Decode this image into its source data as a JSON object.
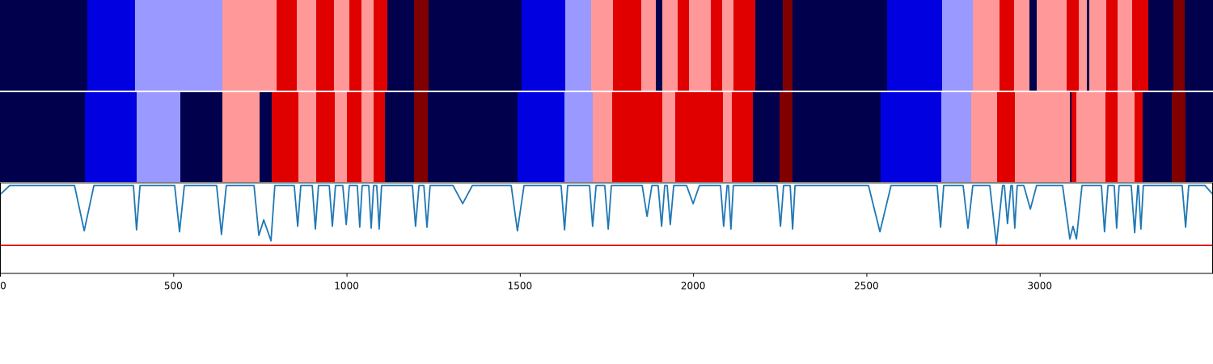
{
  "chart_data": {
    "type": "segments",
    "xlim": [
      0,
      3500
    ],
    "xticks": [
      0,
      500,
      1000,
      1500,
      2000,
      2500,
      3000
    ],
    "colors": [
      "#00004c",
      "#0000e0",
      "#9999ff",
      "#ff9999",
      "#e00000",
      "#800000"
    ],
    "rows": [
      {
        "boundaries": [
          0,
          252,
          390,
          642,
          798,
          856,
          912,
          964,
          1008,
          1043,
          1078,
          1118,
          1195,
          1237,
          1505,
          1631,
          1706,
          1769,
          1850,
          1892,
          1911,
          1955,
          1988,
          2051,
          2084,
          2116,
          2179,
          2259,
          2287,
          2560,
          2718,
          2807,
          2884,
          2926,
          2970,
          2991,
          3078,
          3113,
          3136,
          3143,
          3192,
          3225,
          3267,
          3313,
          3386,
          3418,
          3500
        ],
        "classes": [
          0,
          1,
          2,
          3,
          4,
          3,
          4,
          3,
          4,
          3,
          4,
          0,
          5,
          0,
          1,
          2,
          3,
          4,
          3,
          0,
          3,
          4,
          3,
          4,
          3,
          4,
          0,
          5,
          0,
          1,
          2,
          3,
          4,
          3,
          0,
          3,
          4,
          3,
          0,
          3,
          4,
          3,
          4,
          0,
          5,
          0
        ]
      },
      {
        "boundaries": [
          0,
          245,
          394,
          520,
          642,
          749,
          784,
          861,
          912,
          966,
          1001,
          1043,
          1078,
          1111,
          1195,
          1234,
          1493,
          1629,
          1710,
          1766,
          1911,
          1948,
          2086,
          2112,
          2172,
          2249,
          2287,
          2541,
          2716,
          2802,
          2877,
          2928,
          3087,
          3092,
          3106,
          3190,
          3225,
          3274,
          3297,
          3381,
          3421,
          3500
        ],
        "classes": [
          0,
          1,
          2,
          0,
          3,
          0,
          4,
          3,
          4,
          3,
          4,
          3,
          4,
          0,
          5,
          0,
          1,
          2,
          3,
          4,
          3,
          4,
          3,
          4,
          0,
          5,
          0,
          1,
          2,
          3,
          4,
          3,
          0,
          4,
          3,
          4,
          3,
          4,
          0,
          5,
          0
        ]
      }
    ],
    "line": {
      "color": "#1f77b4",
      "ylim": [
        0,
        1
      ],
      "threshold": 0.31,
      "threshold_color": "#e00000",
      "x": [
        0,
        28,
        215,
        243,
        271,
        385,
        394,
        404,
        504,
        518,
        532,
        625,
        639,
        653,
        733,
        747,
        761,
        782,
        793,
        849,
        859,
        868,
        901,
        910,
        919,
        950,
        959,
        968,
        989,
        999,
        1008,
        1031,
        1038,
        1045,
        1064,
        1071,
        1078,
        1087,
        1094,
        1101,
        1190,
        1199,
        1209,
        1223,
        1232,
        1241,
        1307,
        1335,
        1363,
        1475,
        1493,
        1512,
        1619,
        1629,
        1638,
        1701,
        1710,
        1720,
        1745,
        1755,
        1764,
        1853,
        1867,
        1881,
        1899,
        1909,
        1918,
        1925,
        1934,
        1944,
        1981,
        2000,
        2018,
        2079,
        2088,
        2098,
        2102,
        2109,
        2116,
        2242,
        2252,
        2261,
        2280,
        2287,
        2294,
        2506,
        2539,
        2571,
        2704,
        2714,
        2723,
        2779,
        2793,
        2807,
        2856,
        2875,
        2893,
        2898,
        2907,
        2917,
        2921,
        2928,
        2935,
        2954,
        2973,
        2991,
        3066,
        3087,
        3096,
        3106,
        3122,
        3178,
        3187,
        3197,
        3215,
        3222,
        3229,
        3264,
        3274,
        3283,
        3285,
        3292,
        3299,
        3411,
        3421,
        3430,
        3477,
        3500
      ],
      "values": [
        0.87,
        0.97,
        0.97,
        0.47,
        0.97,
        0.97,
        0.48,
        0.97,
        0.97,
        0.46,
        0.97,
        0.97,
        0.43,
        0.97,
        0.97,
        0.42,
        0.59,
        0.36,
        0.97,
        0.97,
        0.52,
        0.97,
        0.97,
        0.49,
        0.97,
        0.97,
        0.52,
        0.97,
        0.97,
        0.54,
        0.97,
        0.97,
        0.51,
        0.97,
        0.97,
        0.5,
        0.97,
        0.97,
        0.49,
        0.97,
        0.97,
        0.52,
        0.97,
        0.97,
        0.51,
        0.97,
        0.97,
        0.77,
        0.97,
        0.97,
        0.47,
        0.97,
        0.97,
        0.48,
        0.97,
        0.97,
        0.52,
        0.97,
        0.97,
        0.49,
        0.97,
        0.97,
        0.63,
        0.97,
        0.97,
        0.52,
        0.97,
        0.97,
        0.54,
        0.97,
        0.97,
        0.77,
        0.97,
        0.97,
        0.52,
        0.97,
        0.97,
        0.49,
        0.97,
        0.97,
        0.52,
        0.97,
        0.97,
        0.49,
        0.97,
        0.97,
        0.46,
        0.97,
        0.97,
        0.51,
        0.97,
        0.97,
        0.5,
        0.97,
        0.97,
        0.32,
        0.97,
        0.97,
        0.55,
        0.97,
        0.97,
        0.5,
        0.97,
        0.97,
        0.71,
        0.97,
        0.97,
        0.38,
        0.52,
        0.38,
        0.97,
        0.97,
        0.46,
        0.97,
        0.97,
        0.5,
        0.97,
        0.97,
        0.45,
        0.97,
        0.97,
        0.49,
        0.97,
        0.97,
        0.51,
        0.97,
        0.97,
        0.87
      ]
    }
  }
}
